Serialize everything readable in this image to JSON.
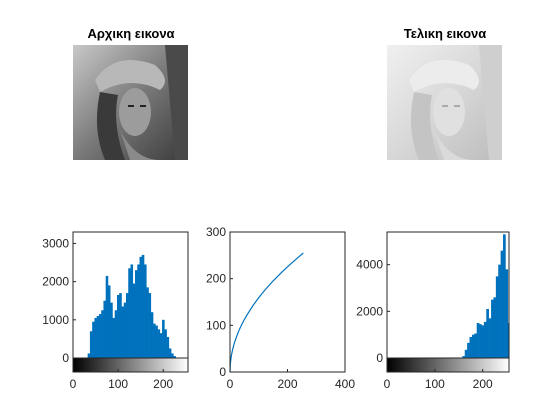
{
  "images": {
    "original": {
      "title": "Αρχικη εικονα"
    },
    "final": {
      "title": "Τελικη εικονα"
    }
  },
  "colors": {
    "bar": "#0072bd",
    "axis": "#262626",
    "background": "#ffffff"
  },
  "chart_data": [
    {
      "id": "hist-original",
      "type": "bar",
      "xlim": [
        0,
        255
      ],
      "ylim": [
        0,
        3300
      ],
      "xticks": [
        0,
        100,
        200
      ],
      "yticks": [
        0,
        1000,
        2000,
        3000
      ],
      "colorbar": "gray",
      "x": [
        35,
        40,
        45,
        50,
        55,
        60,
        65,
        70,
        75,
        80,
        85,
        90,
        95,
        100,
        105,
        110,
        115,
        120,
        125,
        130,
        135,
        140,
        145,
        150,
        155,
        160,
        165,
        170,
        175,
        180,
        185,
        190,
        195,
        200,
        205,
        210,
        215,
        220,
        225,
        230
      ],
      "values": [
        120,
        700,
        950,
        1050,
        1100,
        1150,
        1250,
        1500,
        2150,
        1900,
        1450,
        1050,
        1250,
        1650,
        1700,
        1350,
        1450,
        1700,
        2350,
        2450,
        1950,
        2300,
        2450,
        2650,
        2700,
        2450,
        1850,
        1700,
        1200,
        900,
        850,
        750,
        650,
        1000,
        750,
        550,
        250,
        120,
        50,
        10
      ]
    },
    {
      "id": "transfer-curve",
      "type": "line",
      "xlim": [
        0,
        400
      ],
      "ylim": [
        0,
        300
      ],
      "xticks": [
        0,
        200,
        400
      ],
      "yticks": [
        0,
        100,
        200,
        300
      ],
      "x": [
        0,
        1,
        2,
        3,
        5,
        8,
        10,
        15,
        20,
        30,
        40,
        50,
        60,
        80,
        100,
        120,
        150,
        180,
        200,
        230,
        255
      ],
      "y": [
        0,
        16,
        22.5,
        27.6,
        35.6,
        45.1,
        50.4,
        61.7,
        71.3,
        87.3,
        100.8,
        112.7,
        123.5,
        142.6,
        159.4,
        174.6,
        195.3,
        213.9,
        225.5,
        241.8,
        255
      ]
    },
    {
      "id": "hist-final",
      "type": "bar",
      "xlim": [
        0,
        255
      ],
      "ylim": [
        0,
        5400
      ],
      "xticks": [
        0,
        100,
        200
      ],
      "yticks": [
        0,
        2000,
        4000
      ],
      "colorbar": "gray",
      "x": [
        160,
        165,
        170,
        175,
        180,
        185,
        190,
        195,
        200,
        205,
        210,
        215,
        220,
        225,
        230,
        235,
        240,
        245,
        250,
        253
      ],
      "values": [
        80,
        350,
        650,
        900,
        1000,
        1050,
        1500,
        1450,
        1400,
        1550,
        2100,
        1700,
        2500,
        2600,
        3500,
        4000,
        4600,
        5300,
        3800,
        1500
      ]
    }
  ]
}
